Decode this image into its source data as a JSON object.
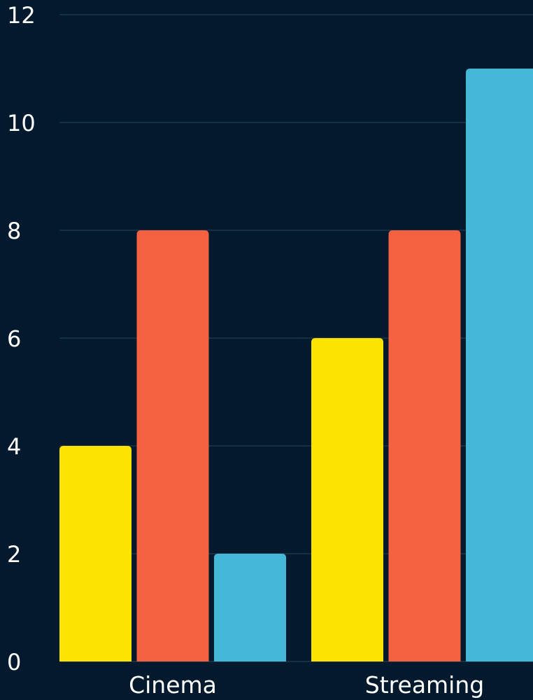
{
  "chart_data": {
    "type": "bar",
    "categories": [
      "Cinema",
      "Streaming"
    ],
    "series": [
      {
        "values": [
          4,
          6
        ],
        "color": "#fce400"
      },
      {
        "values": [
          8,
          8
        ],
        "color": "#f46242"
      },
      {
        "values": [
          2,
          11
        ],
        "color": "#45b7d8"
      }
    ],
    "ylim": [
      0,
      12
    ],
    "yticks": [
      0,
      2,
      4,
      6,
      8,
      10,
      12
    ],
    "grid": true,
    "legend": "none",
    "background": "#031a2e"
  }
}
